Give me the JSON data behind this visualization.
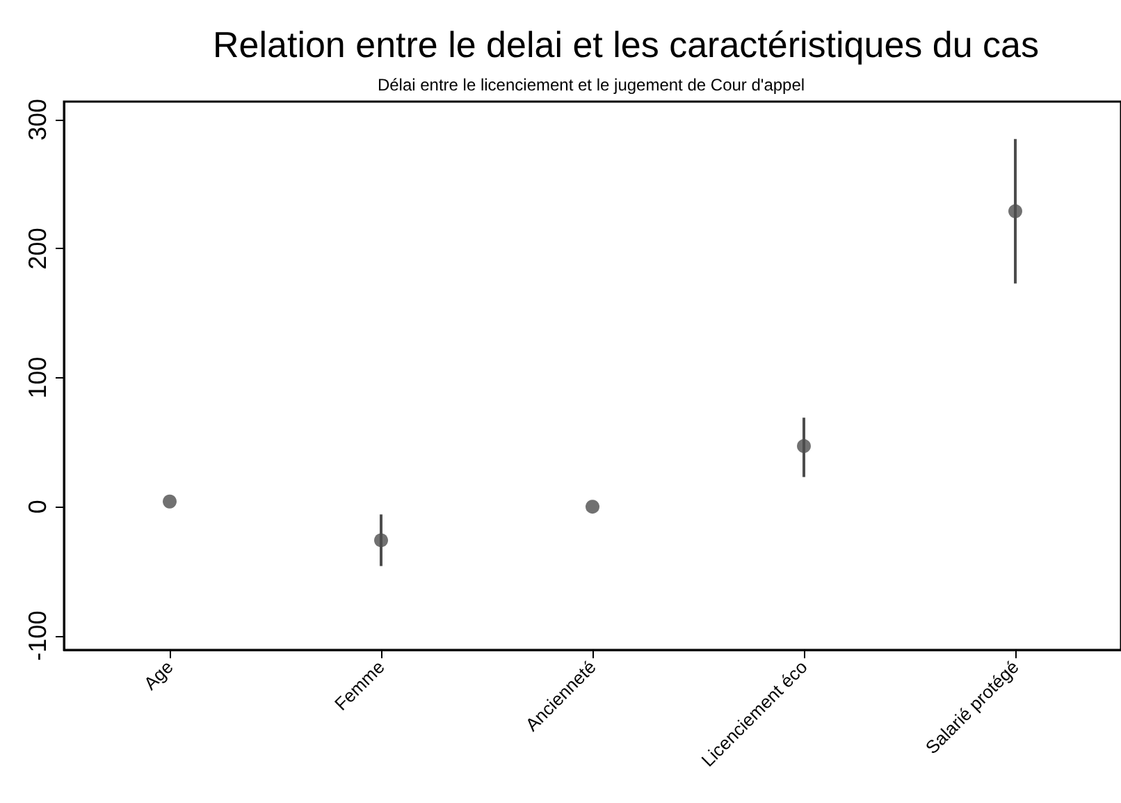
{
  "chart_data": {
    "type": "scatter",
    "title": "Relation entre le delai et les caractéristiques du cas",
    "subtitle": "Délai entre le licenciement et le jugement de Cour d'appel",
    "categories": [
      "Age",
      "Femme",
      "Ancienneté",
      "Licenciement éco",
      "Salarié protégé"
    ],
    "values": [
      4,
      -26,
      0,
      47,
      229
    ],
    "errors": [
      null,
      [
        -46,
        -6
      ],
      null,
      [
        23,
        69
      ],
      [
        173,
        285
      ]
    ],
    "color": "#4d4d4d",
    "marker": "circle",
    "ylim": [
      -111,
      314
    ],
    "yticks": [
      -100,
      0,
      100,
      200,
      300
    ],
    "grid": false
  }
}
